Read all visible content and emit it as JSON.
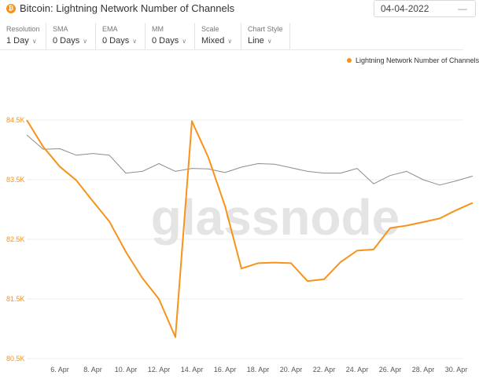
{
  "header": {
    "coin_icon": "bitcoin-icon",
    "coin_symbol": "₿",
    "title": "Bitcoin: Lightning Network Number of Channels",
    "date_value": "04-04-2022"
  },
  "controls": [
    {
      "label": "Resolution",
      "value": "1 Day"
    },
    {
      "label": "SMA",
      "value": "0 Days"
    },
    {
      "label": "EMA",
      "value": "0 Days"
    },
    {
      "label": "MM",
      "value": "0 Days"
    },
    {
      "label": "Scale",
      "value": "Mixed"
    },
    {
      "label": "Chart Style",
      "value": "Line"
    }
  ],
  "watermark": "glassnode",
  "colors": {
    "accent": "#f7931a",
    "secondary_line": "#8c8c8c",
    "grid": "#ececec"
  },
  "chart_data": {
    "type": "line",
    "legend_position": "top-right",
    "grid": true,
    "x": [
      "2022-04-04",
      "2022-04-05",
      "2022-04-06",
      "2022-04-07",
      "2022-04-08",
      "2022-04-09",
      "2022-04-10",
      "2022-04-11",
      "2022-04-12",
      "2022-04-13",
      "2022-04-14",
      "2022-04-15",
      "2022-04-16",
      "2022-04-17",
      "2022-04-18",
      "2022-04-19",
      "2022-04-20",
      "2022-04-21",
      "2022-04-22",
      "2022-04-23",
      "2022-04-24",
      "2022-04-25",
      "2022-04-26",
      "2022-04-27",
      "2022-04-28",
      "2022-04-29",
      "2022-04-30",
      "2022-05-01"
    ],
    "x_ticks": [
      "6. Apr",
      "8. Apr",
      "10. Apr",
      "12. Apr",
      "14. Apr",
      "16. Apr",
      "18. Apr",
      "20. Apr",
      "22. Apr",
      "24. Apr",
      "26. Apr",
      "28. Apr",
      "30. Apr"
    ],
    "y_ticks": [
      "84.5K",
      "83.5K",
      "82.5K",
      "81.5K",
      "80.5K"
    ],
    "ylim": [
      80500,
      84500
    ],
    "series": [
      {
        "name": "Lightning Network Number of Channels",
        "color": "#f7931a",
        "values": [
          84500,
          84050,
          83720,
          83490,
          83140,
          82800,
          82290,
          81850,
          81500,
          80860,
          84480,
          83870,
          83060,
          82010,
          82100,
          82110,
          82100,
          81800,
          81830,
          82120,
          82310,
          82330,
          82690,
          82730,
          82790,
          82850,
          82990,
          83110
        ]
      },
      {
        "name": "",
        "color": "#8c8c8c",
        "values": [
          84250,
          84010,
          84020,
          83910,
          83940,
          83910,
          83610,
          83640,
          83770,
          83640,
          83690,
          83680,
          83620,
          83710,
          83770,
          83760,
          83700,
          83640,
          83610,
          83610,
          83690,
          83430,
          83570,
          83640,
          83500,
          83410,
          83480,
          83560
        ]
      }
    ]
  }
}
